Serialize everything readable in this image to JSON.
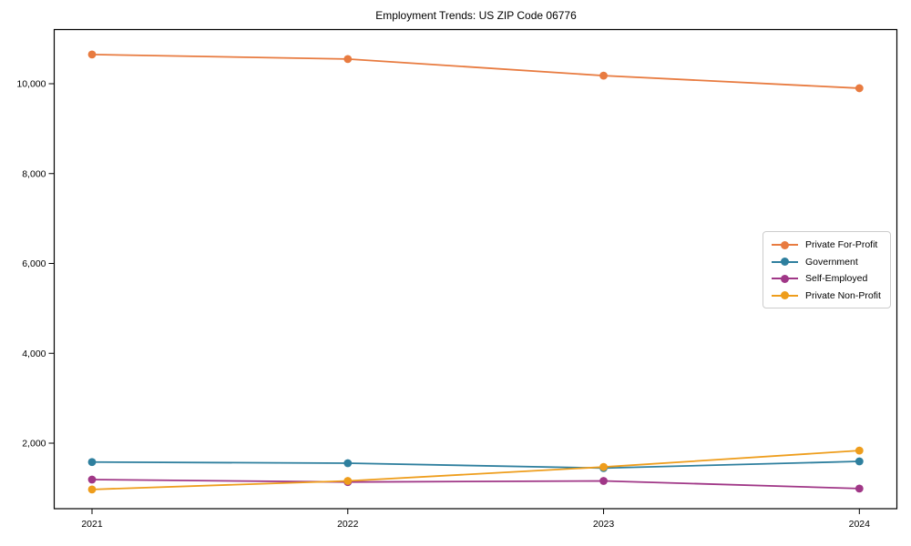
{
  "title": "Employment Trends: US ZIP Code 06776",
  "chart_data": {
    "type": "line",
    "title": "Employment Trends: US ZIP Code 06776",
    "x": [
      2021,
      2022,
      2023,
      2024
    ],
    "x_tick_labels": [
      "2021",
      "2022",
      "2023",
      "2024"
    ],
    "y_ticks": [
      2000,
      4000,
      6000,
      8000,
      10000
    ],
    "y_tick_labels": [
      "2,000",
      "4,000",
      "6,000",
      "8,000",
      "10,000"
    ],
    "ylim": [
      500,
      11200
    ],
    "xlabel": "",
    "ylabel": "",
    "grid": false,
    "marker": "circle",
    "legend_position": "center right",
    "series": [
      {
        "name": "Private For-Profit",
        "color": "#e87b40",
        "values": [
          10650,
          10550,
          10180,
          9900
        ]
      },
      {
        "name": "Government",
        "color": "#2e7f9e",
        "values": [
          1580,
          1555,
          1445,
          1595
        ]
      },
      {
        "name": "Self-Employed",
        "color": "#a03787",
        "values": [
          1190,
          1135,
          1160,
          990
        ]
      },
      {
        "name": "Private Non-Profit",
        "color": "#ee9d1c",
        "values": [
          970,
          1160,
          1470,
          1835
        ]
      }
    ]
  },
  "colors": {
    "frame": "#000000",
    "text": "#000000",
    "legend_border": "#cccccc",
    "background": "#ffffff"
  }
}
